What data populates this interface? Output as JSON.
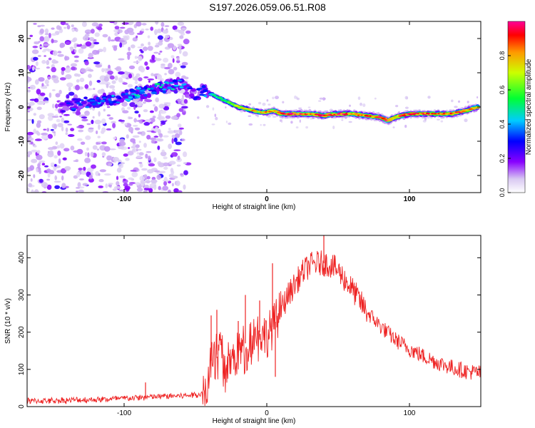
{
  "figure_title": "S197.2026.059.06.51.R08",
  "chart_data": [
    {
      "type": "heatmap",
      "title": "S197.2026.059.06.51.R08",
      "xlabel": "Height of straight line (km)",
      "ylabel": "Frequency (Hz)",
      "xlim": [
        -168,
        150
      ],
      "ylim": [
        -25,
        25
      ],
      "xticks": [
        -100,
        0,
        100
      ],
      "yticks": [
        -20,
        -10,
        0,
        10,
        20
      ],
      "colorbar": {
        "label": "Normalized spectral amplitude",
        "range": [
          0.0,
          1.0
        ],
        "ticks": [
          0.0,
          0.2,
          0.4,
          0.6,
          0.8
        ]
      },
      "ridge": {
        "x": [
          -145,
          -130,
          -115,
          -100,
          -90,
          -80,
          -70,
          -60,
          -55,
          -50,
          -45,
          -40,
          -35,
          -30,
          -25,
          -20,
          -15,
          -10,
          -5,
          0,
          5,
          10,
          15,
          20,
          30,
          40,
          50,
          60,
          70,
          80,
          85,
          90,
          95,
          100,
          110,
          120,
          130,
          140,
          148
        ],
        "y": [
          0,
          1,
          2,
          3,
          4,
          5,
          6,
          7,
          5,
          3,
          5,
          4,
          3,
          2,
          1,
          0,
          -0.5,
          -1,
          -1.5,
          -1.5,
          -1,
          -2,
          -2,
          -2,
          -2,
          -2.5,
          -2,
          -2,
          -2.5,
          -3,
          -4,
          -3,
          -2.5,
          -2,
          -2,
          -2,
          -2,
          -1,
          0
        ],
        "peak_amplitude": [
          0.3,
          0.35,
          0.4,
          0.4,
          0.45,
          0.45,
          0.45,
          0.4,
          0.35,
          0.3,
          0.35,
          0.4,
          0.5,
          0.55,
          0.6,
          0.7,
          0.7,
          0.75,
          0.75,
          0.8,
          0.8,
          0.85,
          0.9,
          0.9,
          0.85,
          0.9,
          0.9,
          0.85,
          0.85,
          0.9,
          0.9,
          0.85,
          0.85,
          0.85,
          0.85,
          0.85,
          0.85,
          0.85,
          0.8
        ]
      },
      "noise_region_x": [
        -168,
        -55
      ]
    },
    {
      "type": "line",
      "xlabel": "Height of straight line (km)",
      "ylabel": "SNR (10 * v/v)",
      "xlim": [
        -168,
        150
      ],
      "ylim": [
        0,
        460
      ],
      "xticks": [
        -100,
        0,
        100
      ],
      "yticks": [
        0,
        100,
        200,
        300,
        400
      ],
      "series": [
        {
          "name": "SNR",
          "color": "#ee2222",
          "x": [
            -168,
            -150,
            -130,
            -110,
            -90,
            -70,
            -55,
            -45,
            -42,
            -40,
            -37,
            -35,
            -32,
            -30,
            -25,
            -20,
            -15,
            -10,
            -5,
            0,
            5,
            10,
            15,
            20,
            25,
            30,
            35,
            40,
            45,
            50,
            55,
            60,
            65,
            70,
            80,
            90,
            100,
            110,
            120,
            130,
            140,
            150
          ],
          "y": [
            15,
            16,
            18,
            20,
            24,
            28,
            30,
            35,
            55,
            110,
            150,
            140,
            160,
            115,
            120,
            145,
            170,
            195,
            200,
            190,
            220,
            260,
            300,
            330,
            360,
            380,
            385,
            385,
            380,
            365,
            340,
            315,
            285,
            255,
            215,
            180,
            155,
            135,
            118,
            105,
            95,
            90
          ],
          "spikes": [
            {
              "x": -85,
              "y": 65
            },
            {
              "x": -39,
              "y": 245
            },
            {
              "x": -35,
              "y": 260
            },
            {
              "x": -20,
              "y": 230
            },
            {
              "x": -15,
              "y": 300
            },
            {
              "x": -5,
              "y": 285
            },
            {
              "x": 4,
              "y": 385
            },
            {
              "x": 6,
              "y": 80
            },
            {
              "x": 40,
              "y": 460
            }
          ]
        }
      ]
    }
  ]
}
